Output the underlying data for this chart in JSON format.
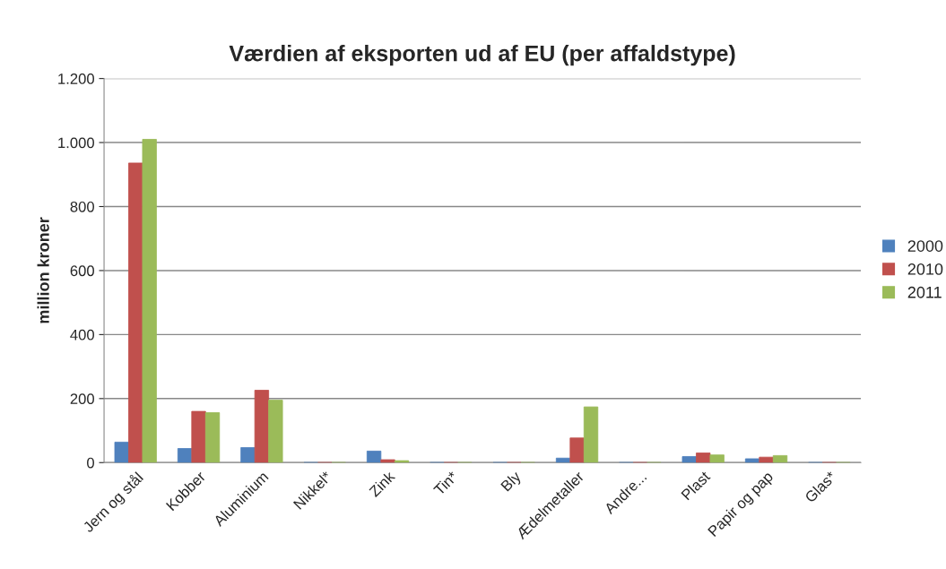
{
  "chart_data": {
    "type": "bar",
    "title": "Værdien af eksporten ud af EU (per affaldstype)",
    "ylabel": "million kroner",
    "categories": [
      "Jern og stål",
      "Kobber",
      "Aluminium",
      "Nikkel*",
      "Zink",
      "Tin*",
      "Bly",
      "Ædelmetaller",
      "Andre...",
      "Plast",
      "Papir og pap",
      "Glas*"
    ],
    "series": [
      {
        "name": "2000",
        "color": "#4f81bd",
        "values": [
          64,
          44,
          47,
          0,
          36,
          0,
          0,
          14,
          0,
          19,
          12,
          0
        ]
      },
      {
        "name": "2010",
        "color": "#c0504d",
        "values": [
          936,
          160,
          226,
          0,
          9,
          0,
          0,
          77,
          0,
          30,
          17,
          0
        ]
      },
      {
        "name": "2011",
        "color": "#9bbb59",
        "values": [
          1010,
          156,
          195,
          0,
          6,
          0,
          0,
          174,
          0,
          24,
          22,
          0
        ]
      }
    ],
    "ylim": [
      0,
      1200
    ],
    "yticks": [
      0,
      200,
      400,
      600,
      800,
      {
        "value": 1000,
        "label": "1.000"
      },
      {
        "value": 1200,
        "label": "1.200"
      }
    ],
    "grid": "y",
    "legend": "right"
  }
}
